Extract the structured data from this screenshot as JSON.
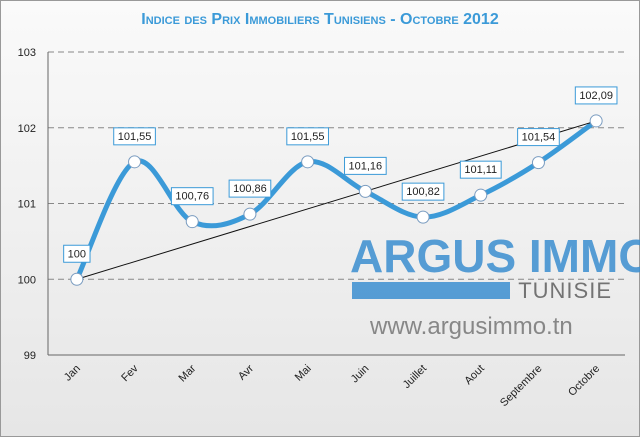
{
  "chart_data": {
    "type": "line",
    "title": "Indice des Prix Immobiliers Tunisiens - Octobre 2012",
    "categories": [
      "Jan",
      "Fev",
      "Mar",
      "Avr",
      "Mai",
      "Juin",
      "Juillet",
      "Aout",
      "Septembre",
      "Octobre"
    ],
    "values": [
      100,
      101.55,
      100.76,
      100.86,
      101.55,
      101.16,
      100.82,
      101.11,
      101.54,
      102.09
    ],
    "value_labels": [
      "100",
      "101,55",
      "100,76",
      "100,86",
      "101,55",
      "101,16",
      "100,82",
      "101,11",
      "101,54",
      "102,09"
    ],
    "color": "#3b9ad8",
    "ylim": [
      99,
      103
    ],
    "yticks": [
      99,
      100,
      101,
      102,
      103
    ],
    "grid": true,
    "trend_line": true,
    "watermark": {
      "brand": "ARGUS IMMO",
      "country": "TUNISIE",
      "url": "www.argusimmo.tn"
    }
  }
}
